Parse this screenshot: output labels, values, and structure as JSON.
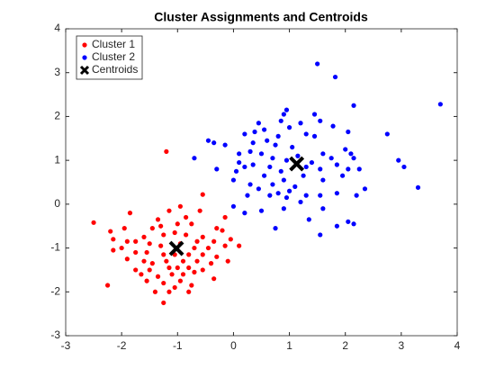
{
  "chart_data": {
    "type": "scatter",
    "title": "Cluster Assignments and Centroids",
    "xlim": [
      -3,
      4
    ],
    "xticks": [
      -3,
      -2,
      -1,
      0,
      1,
      2,
      3,
      4
    ],
    "ylim": [
      -3,
      4
    ],
    "yticks": [
      -3,
      -2,
      -1,
      0,
      1,
      2,
      3,
      4
    ],
    "legend": "northwest",
    "series": [
      {
        "name": "Cluster 1",
        "color": "#ff0000",
        "marker": "dot",
        "x": [
          -1.2,
          -0.55,
          -2.5,
          -2.2,
          -2.15,
          -1.85,
          -1.95,
          -1.35,
          -1.15,
          -0.95,
          -0.85,
          -0.6,
          -0.15,
          -0.2,
          -1.45,
          -1.3,
          -1.0,
          -0.75,
          -0.3,
          -0.05,
          -0.35,
          -0.55,
          -1.6,
          -1.25,
          -1.05,
          -0.85,
          -0.65,
          -1.9,
          -1.75,
          -2.0,
          -2.15,
          -1.5,
          -1.3,
          -0.95,
          -0.7,
          -0.45,
          -0.15,
          0.1,
          -1.75,
          -1.55,
          -1.25,
          -1.05,
          -0.8,
          -0.55,
          -0.3,
          -1.9,
          -1.6,
          -1.45,
          -1.2,
          -0.9,
          -0.65,
          -0.4,
          -0.1,
          -1.75,
          -1.5,
          -1.15,
          -1.0,
          -0.8,
          -0.55,
          -1.65,
          -1.35,
          -1.1,
          -0.9,
          -0.7,
          -1.55,
          -1.25,
          -0.95,
          -0.75,
          -0.35,
          -2.25,
          -1.4,
          -1.15,
          -0.8,
          -1.25,
          -1.05
        ],
        "y": [
          1.2,
          0.22,
          -0.42,
          -0.62,
          -0.8,
          -0.2,
          -0.55,
          -0.35,
          -0.15,
          -0.05,
          -0.3,
          -0.15,
          -0.3,
          -0.6,
          -0.55,
          -0.5,
          -0.45,
          -0.45,
          -0.55,
          -0.8,
          -0.85,
          -0.75,
          -0.75,
          -0.7,
          -0.65,
          -0.7,
          -0.85,
          -0.85,
          -0.85,
          -1.0,
          -1.05,
          -0.9,
          -0.95,
          -0.9,
          -1.0,
          -1.0,
          -0.95,
          -0.95,
          -1.1,
          -1.1,
          -1.15,
          -1.15,
          -1.15,
          -1.15,
          -1.2,
          -1.25,
          -1.3,
          -1.35,
          -1.3,
          -1.3,
          -1.3,
          -1.35,
          -1.3,
          -1.5,
          -1.5,
          -1.45,
          -1.45,
          -1.45,
          -1.5,
          -1.6,
          -1.65,
          -1.6,
          -1.6,
          -1.55,
          -1.75,
          -1.8,
          -1.75,
          -1.85,
          -1.7,
          -1.85,
          -2.0,
          -2.0,
          -2.0,
          -2.25,
          -1.9
        ]
      },
      {
        "name": "Cluster 2",
        "color": "#0000ff",
        "marker": "dot",
        "x": [
          1.5,
          1.82,
          3.7,
          2.15,
          1.45,
          0.95,
          0.9,
          0.85,
          1.0,
          1.2,
          1.55,
          1.78,
          0.45,
          0.55,
          0.38,
          0.2,
          0.8,
          1.3,
          1.45,
          2.05,
          0.6,
          -0.35,
          -0.45,
          -0.15,
          0.35,
          0.75,
          1.05,
          1.6,
          1.75,
          2.0,
          2.1,
          2.15,
          0.1,
          0.3,
          0.5,
          0.7,
          0.95,
          1.15,
          1.4,
          -0.7,
          0.1,
          0.2,
          0.35,
          0.65,
          0.85,
          1.3,
          1.55,
          1.85,
          2.25,
          2.75,
          2.95,
          3.05,
          3.3,
          -0.3,
          0.05,
          0.55,
          0.9,
          1.25,
          1.6,
          1.95,
          2.05,
          0.0,
          0.3,
          0.7,
          1.1,
          0.45,
          0.8,
          1.0,
          1.3,
          1.55,
          1.85,
          2.35,
          2.2,
          0.25,
          0.65,
          0.95,
          1.2,
          0.0,
          0.5,
          0.9,
          1.6,
          0.2,
          1.35,
          2.05,
          0.75,
          1.85,
          2.15,
          1.55
        ],
        "y": [
          3.2,
          2.9,
          2.28,
          2.25,
          2.05,
          2.15,
          2.05,
          1.9,
          1.75,
          1.85,
          1.9,
          1.78,
          1.85,
          1.7,
          1.65,
          1.6,
          1.55,
          1.6,
          1.55,
          1.65,
          1.45,
          1.4,
          1.45,
          1.35,
          1.4,
          1.35,
          1.3,
          1.15,
          1.05,
          1.25,
          1.15,
          1.05,
          1.15,
          1.2,
          1.15,
          1.05,
          1.0,
          1.1,
          0.95,
          1.05,
          0.95,
          0.85,
          0.9,
          0.85,
          0.75,
          0.85,
          0.8,
          0.9,
          0.8,
          1.6,
          1.0,
          0.85,
          0.38,
          0.8,
          0.75,
          0.65,
          0.55,
          0.65,
          0.55,
          0.65,
          0.8,
          0.55,
          0.45,
          0.45,
          0.4,
          0.35,
          0.25,
          0.3,
          0.2,
          0.2,
          0.25,
          0.35,
          0.2,
          0.2,
          0.2,
          0.15,
          0.05,
          -0.05,
          -0.15,
          -0.1,
          -0.1,
          -0.2,
          -0.35,
          -0.4,
          -0.55,
          -0.5,
          -0.45,
          -0.7
        ]
      },
      {
        "name": "Centroids",
        "color": "#000000",
        "marker": "x",
        "x": [
          -1.02,
          1.13
        ],
        "y": [
          -1.01,
          0.92
        ]
      }
    ]
  }
}
